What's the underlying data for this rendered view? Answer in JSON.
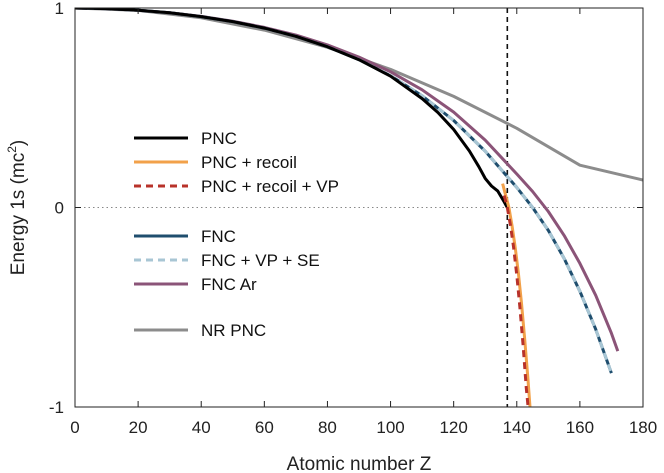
{
  "chart_data": {
    "type": "line",
    "title": "",
    "xlabel": "Atomic number Z",
    "ylabel_main": "Energy 1s (mc",
    "ylabel_sup": "2",
    "ylabel_close": ")",
    "xlim": [
      0,
      180
    ],
    "ylim": [
      -1,
      1
    ],
    "xticks": [
      "0",
      "20",
      "40",
      "60",
      "80",
      "100",
      "120",
      "140",
      "160",
      "180"
    ],
    "yticks": [
      "-1",
      "0",
      "1"
    ],
    "grid": false,
    "legend_position": "left",
    "reference_lines": [
      {
        "orientation": "vertical",
        "x": 137,
        "style": "dashed",
        "color": "#111111"
      },
      {
        "orientation": "horizontal",
        "y": 0,
        "style": "dotted",
        "color": "#888888"
      }
    ],
    "series": [
      {
        "name": "PNC",
        "color": "#000000",
        "dash": "solid",
        "x": [
          0,
          10,
          20,
          30,
          40,
          50,
          60,
          70,
          80,
          90,
          100,
          110,
          115,
          120,
          125,
          128,
          130,
          132,
          134,
          135,
          136,
          137
        ],
        "y": [
          1.0,
          0.997,
          0.989,
          0.976,
          0.957,
          0.932,
          0.899,
          0.858,
          0.806,
          0.741,
          0.658,
          0.546,
          0.476,
          0.391,
          0.283,
          0.204,
          0.146,
          0.108,
          0.082,
          0.055,
          0.028,
          0.0
        ]
      },
      {
        "name": "PNC + recoil",
        "color": "#f2a14a",
        "dash": "solid",
        "x": [
          135.5,
          136.5,
          137.5,
          138.5,
          139.5,
          140.5,
          141.5,
          142.5,
          143.5,
          144.2
        ],
        "y": [
          0.12,
          0.06,
          0.0,
          -0.09,
          -0.2,
          -0.33,
          -0.48,
          -0.66,
          -0.85,
          -1.0
        ]
      },
      {
        "name": "PNC + recoil + VP",
        "color": "#b8322a",
        "dash": "dashed",
        "x": [
          136,
          137,
          138,
          139,
          140,
          141,
          142,
          143,
          143.6
        ],
        "y": [
          0.06,
          0.0,
          -0.09,
          -0.2,
          -0.34,
          -0.5,
          -0.69,
          -0.9,
          -1.0
        ]
      },
      {
        "name": "FNC",
        "color": "#1f4e6e",
        "dash": "solid",
        "x": [
          0,
          10,
          20,
          30,
          40,
          50,
          60,
          70,
          80,
          90,
          100,
          110,
          120,
          130,
          140,
          145,
          150,
          155,
          160,
          165,
          170
        ],
        "y": [
          1.0,
          0.997,
          0.989,
          0.976,
          0.957,
          0.932,
          0.899,
          0.858,
          0.806,
          0.741,
          0.66,
          0.56,
          0.436,
          0.282,
          0.1,
          0.0,
          -0.115,
          -0.255,
          -0.42,
          -0.61,
          -0.83
        ]
      },
      {
        "name": "FNC + VP + SE",
        "color": "#a8c6d4",
        "dash": "dashed",
        "x": [
          0,
          10,
          20,
          30,
          40,
          50,
          60,
          70,
          80,
          90,
          100,
          110,
          120,
          130,
          140,
          145,
          150,
          155,
          160,
          165,
          170
        ],
        "y": [
          1.0,
          0.997,
          0.989,
          0.976,
          0.957,
          0.932,
          0.899,
          0.858,
          0.806,
          0.741,
          0.66,
          0.56,
          0.436,
          0.282,
          0.1,
          0.0,
          -0.115,
          -0.255,
          -0.42,
          -0.61,
          -0.83
        ]
      },
      {
        "name": "FNC Ar",
        "color": "#8b5478",
        "dash": "solid",
        "x": [
          0,
          10,
          20,
          30,
          40,
          50,
          60,
          70,
          80,
          90,
          100,
          110,
          120,
          130,
          140,
          145,
          150,
          155,
          160,
          165,
          170,
          172
        ],
        "y": [
          1.0,
          0.997,
          0.989,
          0.976,
          0.958,
          0.934,
          0.903,
          0.864,
          0.815,
          0.754,
          0.68,
          0.59,
          0.478,
          0.338,
          0.168,
          0.08,
          -0.02,
          -0.14,
          -0.28,
          -0.44,
          -0.63,
          -0.72
        ]
      },
      {
        "name": "NR PNC",
        "color": "#8c8c8c",
        "dash": "solid",
        "x": [
          0,
          20,
          40,
          60,
          80,
          100,
          120,
          140,
          160,
          180
        ],
        "y": [
          1.0,
          0.988,
          0.951,
          0.889,
          0.803,
          0.692,
          0.557,
          0.397,
          0.212,
          0.138
        ]
      }
    ]
  }
}
